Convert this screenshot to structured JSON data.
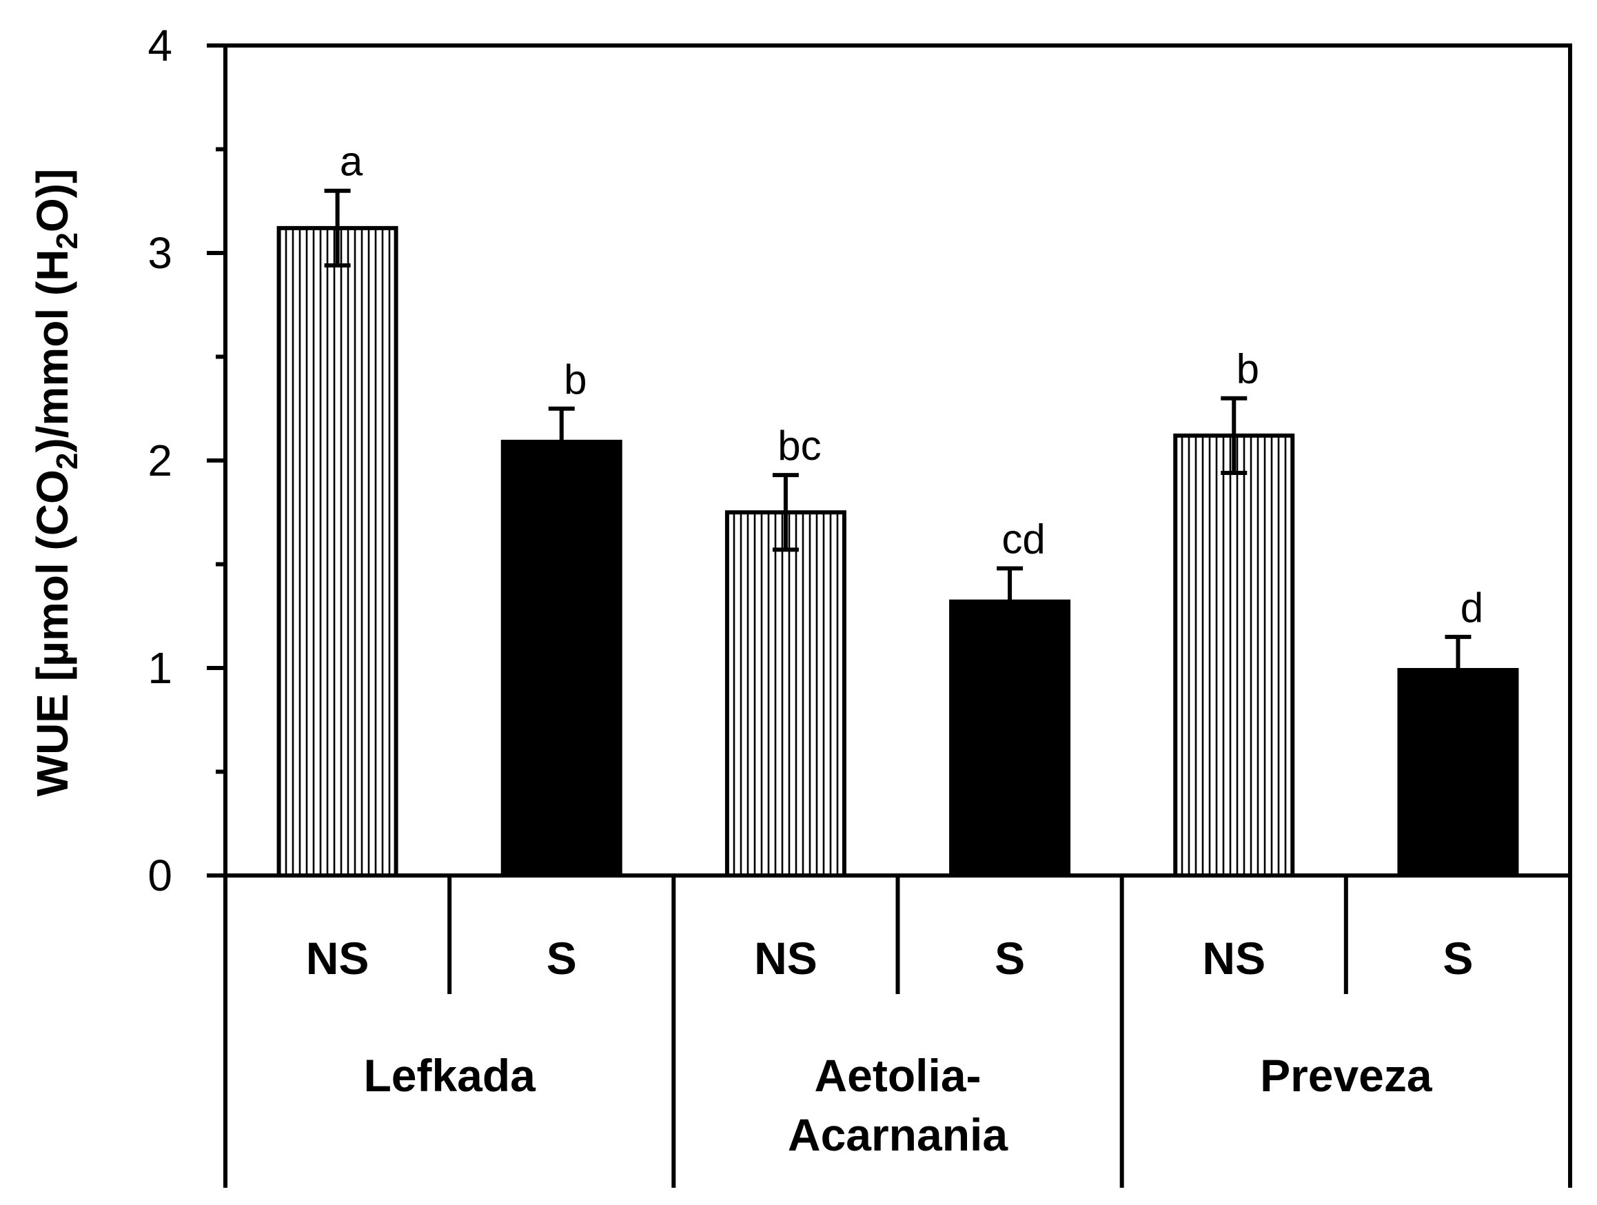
{
  "chart_data": {
    "type": "bar",
    "title": "",
    "ylabel": {
      "prefix": "WUE [µmol (CO",
      "sub1": "2",
      "middle": ")/mmol (H",
      "sub2": "2",
      "suffix": "O)]"
    },
    "xlabel": "",
    "ylim": [
      0,
      4
    ],
    "yticks": [
      "0",
      "1",
      "2",
      "3",
      "4"
    ],
    "grid": false,
    "groups": [
      "Lefkada",
      "Aetolia-Acarnania",
      "Preveza"
    ],
    "group_label_lines": [
      [
        "Lefkada"
      ],
      [
        "Aetolia-",
        "Acarnania"
      ],
      [
        "Preveza"
      ]
    ],
    "treatments": [
      "NS",
      "S"
    ],
    "bars": [
      {
        "group": "Lefkada",
        "treatment": "NS",
        "value": 3.12,
        "error": 0.18,
        "letter": "a",
        "fill": "hatched"
      },
      {
        "group": "Lefkada",
        "treatment": "S",
        "value": 2.09,
        "error": 0.16,
        "letter": "b",
        "fill": "solid"
      },
      {
        "group": "Aetolia-Acarnania",
        "treatment": "NS",
        "value": 1.75,
        "error": 0.18,
        "letter": "bc",
        "fill": "hatched"
      },
      {
        "group": "Aetolia-Acarnania",
        "treatment": "S",
        "value": 1.32,
        "error": 0.16,
        "letter": "cd",
        "fill": "solid"
      },
      {
        "group": "Preveza",
        "treatment": "NS",
        "value": 2.12,
        "error": 0.18,
        "letter": "b",
        "fill": "hatched"
      },
      {
        "group": "Preveza",
        "treatment": "S",
        "value": 0.99,
        "error": 0.16,
        "letter": "d",
        "fill": "solid"
      }
    ],
    "colors": {
      "bar_solid": "#000000",
      "bar_hatched_stroke": "#000000",
      "background": "#ffffff"
    }
  }
}
